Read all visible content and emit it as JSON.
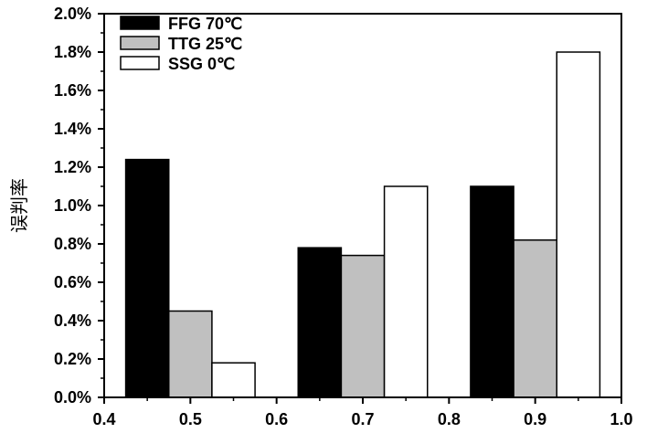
{
  "chart_data": {
    "type": "bar",
    "title": "",
    "xlabel": "",
    "ylabel": "误判率",
    "x_positions": [
      0.45,
      0.65,
      0.85
    ],
    "bar_width": 0.05,
    "series": [
      {
        "name": "FFG 70℃",
        "values": [
          1.24,
          0.78,
          1.1
        ],
        "color": "#000000",
        "offset": 0
      },
      {
        "name": "TTG 25℃",
        "values": [
          0.45,
          0.74,
          0.82
        ],
        "color": "#c0c0c0",
        "offset": 1
      },
      {
        "name": "SSG 0℃",
        "values": [
          0.18,
          1.1,
          1.8
        ],
        "color": "#ffffff",
        "offset": 2
      }
    ],
    "xlim": [
      0.4,
      1.0
    ],
    "ylim": [
      0,
      2.0
    ],
    "xticks": [
      0.4,
      0.5,
      0.6,
      0.7,
      0.8,
      0.9,
      1.0
    ],
    "xtick_labels": [
      "0.4",
      "0.5",
      "0.6",
      "0.7",
      "0.8",
      "0.9",
      "1.0"
    ],
    "yticks": [
      0.0,
      0.2,
      0.4,
      0.6,
      0.8,
      1.0,
      1.2,
      1.4,
      1.6,
      1.8,
      2.0
    ],
    "ytick_labels": [
      "0.0%",
      "0.2%",
      "0.4%",
      "0.6%",
      "0.8%",
      "1.0%",
      "1.2%",
      "1.4%",
      "1.6%",
      "1.8%",
      "2.0%"
    ],
    "legend_position": "top-left",
    "grid": false
  }
}
